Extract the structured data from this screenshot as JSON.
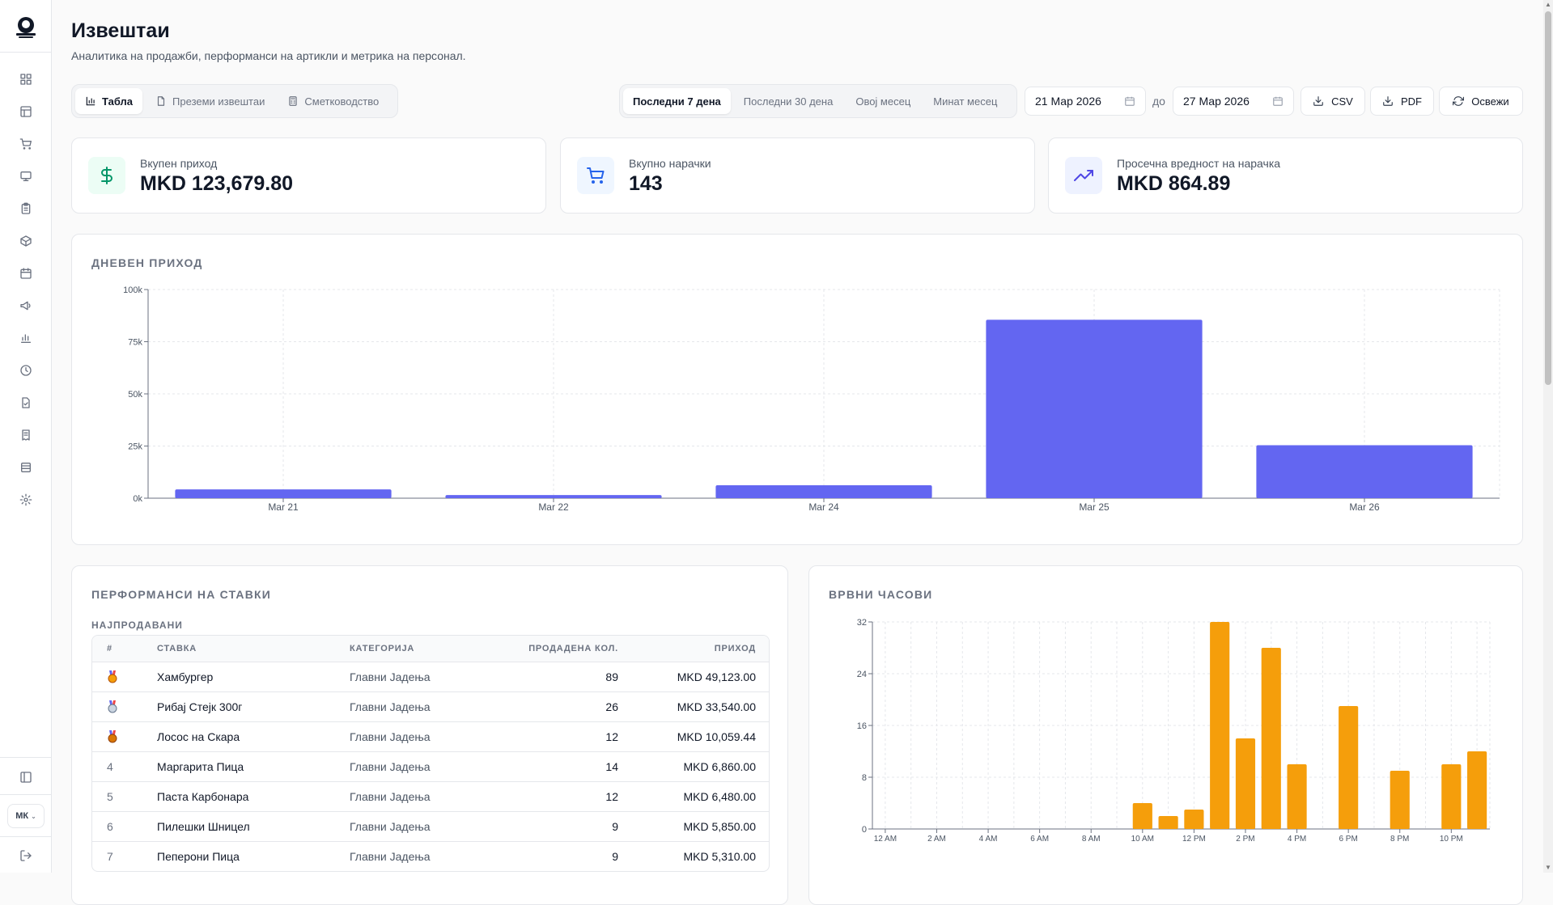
{
  "page": {
    "title": "Извештаи",
    "subtitle": "Аналитика на продажби, перформанси на артикли и метрика на персонал."
  },
  "sidebar": {
    "items": [
      "dashboard-icon",
      "layout-icon",
      "cart-icon",
      "monitor-icon",
      "clipboard-icon",
      "box-icon",
      "calendar-icon",
      "megaphone-icon",
      "bar-chart-icon",
      "clock-icon",
      "file-check-icon",
      "receipt-icon",
      "database-icon",
      "gear-icon"
    ],
    "language": "МК"
  },
  "view_tabs": [
    {
      "label": "Табла",
      "icon": "bar-chart-icon",
      "active": true
    },
    {
      "label": "Преземи извештаи",
      "icon": "file-icon",
      "active": false
    },
    {
      "label": "Сметководство",
      "icon": "calculator-icon",
      "active": false
    }
  ],
  "period_tabs": [
    {
      "label": "Последни 7 дена",
      "active": true
    },
    {
      "label": "Последни 30 дена",
      "active": false
    },
    {
      "label": "Овој месец",
      "active": false
    },
    {
      "label": "Минат месец",
      "active": false
    }
  ],
  "date_range": {
    "from": "21 Мар 2026",
    "separator": "до",
    "to": "27 Мар 2026"
  },
  "toolbar": {
    "csv_label": "CSV",
    "pdf_label": "PDF",
    "refresh_label": "Освежи"
  },
  "kpis": [
    {
      "label": "Вкупен приход",
      "value": "MKD 123,679.80",
      "icon": "dollar-icon",
      "color": "#059669",
      "bg": "#ecfdf5"
    },
    {
      "label": "Вкупно нарачки",
      "value": "143",
      "icon": "cart-icon",
      "color": "#2563eb",
      "bg": "#eff6ff"
    },
    {
      "label": "Просечна вредност на нарачка",
      "value": "MKD 864.89",
      "icon": "trending-up-icon",
      "color": "#4f46e5",
      "bg": "#eef2ff"
    }
  ],
  "daily_revenue": {
    "title": "ДНЕВЕН ПРИХОД"
  },
  "items_performance": {
    "title": "ПЕРФОРМАНСИ НА СТАВКИ",
    "subtitle": "НАЈПРОДАВАНИ",
    "columns": [
      "#",
      "СТАВКА",
      "КАТЕГОРИЈА",
      "ПРОДАДЕНА КОЛ.",
      "ПРИХОД"
    ],
    "rows": [
      {
        "rank": "",
        "medal": "gold",
        "name": "Хамбургер",
        "category": "Главни Јадења",
        "qty": "89",
        "revenue": "MKD 49,123.00"
      },
      {
        "rank": "",
        "medal": "silver",
        "name": "Рибај Стејк 300г",
        "category": "Главни Јадења",
        "qty": "26",
        "revenue": "MKD 33,540.00"
      },
      {
        "rank": "",
        "medal": "bronze",
        "name": "Лосос на Скара",
        "category": "Главни Јадења",
        "qty": "12",
        "revenue": "MKD 10,059.44"
      },
      {
        "rank": "4",
        "medal": "",
        "name": "Маргарита Пица",
        "category": "Главни Јадења",
        "qty": "14",
        "revenue": "MKD 6,860.00"
      },
      {
        "rank": "5",
        "medal": "",
        "name": "Паста Карбонара",
        "category": "Главни Јадења",
        "qty": "12",
        "revenue": "MKD 6,480.00"
      },
      {
        "rank": "6",
        "medal": "",
        "name": "Пилешки Шницел",
        "category": "Главни Јадења",
        "qty": "9",
        "revenue": "MKD 5,850.00"
      },
      {
        "rank": "7",
        "medal": "",
        "name": "Пеперони Пица",
        "category": "Главни Јадења",
        "qty": "9",
        "revenue": "MKD 5,310.00"
      }
    ]
  },
  "peak_hours": {
    "title": "ВРВНИ ЧАСОВИ"
  },
  "chart_data": [
    {
      "type": "bar",
      "title": "ДНЕВЕН ПРИХОД",
      "categories": [
        "Mar 21",
        "Mar 22",
        "Mar 24",
        "Mar 25",
        "Mar 26"
      ],
      "values": [
        4200,
        1500,
        6200,
        85500,
        25400
      ],
      "ylim": [
        0,
        100000
      ],
      "yticks": [
        0,
        25000,
        50000,
        75000,
        100000
      ],
      "ytick_labels": [
        "0k",
        "25k",
        "50k",
        "75k",
        "100k"
      ],
      "color": "#6366f1",
      "grid": true
    },
    {
      "type": "bar",
      "title": "ВРВНИ ЧАСОВИ",
      "categories": [
        "12 AM",
        "1 AM",
        "2 AM",
        "3 AM",
        "4 AM",
        "5 AM",
        "6 AM",
        "7 AM",
        "8 AM",
        "9 AM",
        "10 AM",
        "11 AM",
        "12 PM",
        "1 PM",
        "2 PM",
        "3 PM",
        "4 PM",
        "5 PM",
        "6 PM",
        "7 PM",
        "8 PM",
        "9 PM",
        "10 PM",
        "11 PM"
      ],
      "xtick_labels": [
        "12 AM",
        "",
        "2 AM",
        "",
        "4 AM",
        "",
        "6 AM",
        "",
        "8 AM",
        "",
        "10 AM",
        "",
        "12 PM",
        "",
        "2 PM",
        "",
        "4 PM",
        "",
        "6 PM",
        "",
        "8 PM",
        "",
        "10 PM",
        ""
      ],
      "values": [
        0,
        0,
        0,
        0,
        0,
        0,
        0,
        0,
        0,
        0,
        4,
        2,
        3,
        32,
        14,
        28,
        10,
        0,
        19,
        0,
        9,
        0,
        10,
        12
      ],
      "ylim": [
        0,
        32
      ],
      "yticks": [
        0,
        8,
        16,
        24,
        32
      ],
      "ytick_labels": [
        "0",
        "8",
        "16",
        "24",
        "32"
      ],
      "color": "#f59e0b",
      "grid": true
    }
  ]
}
